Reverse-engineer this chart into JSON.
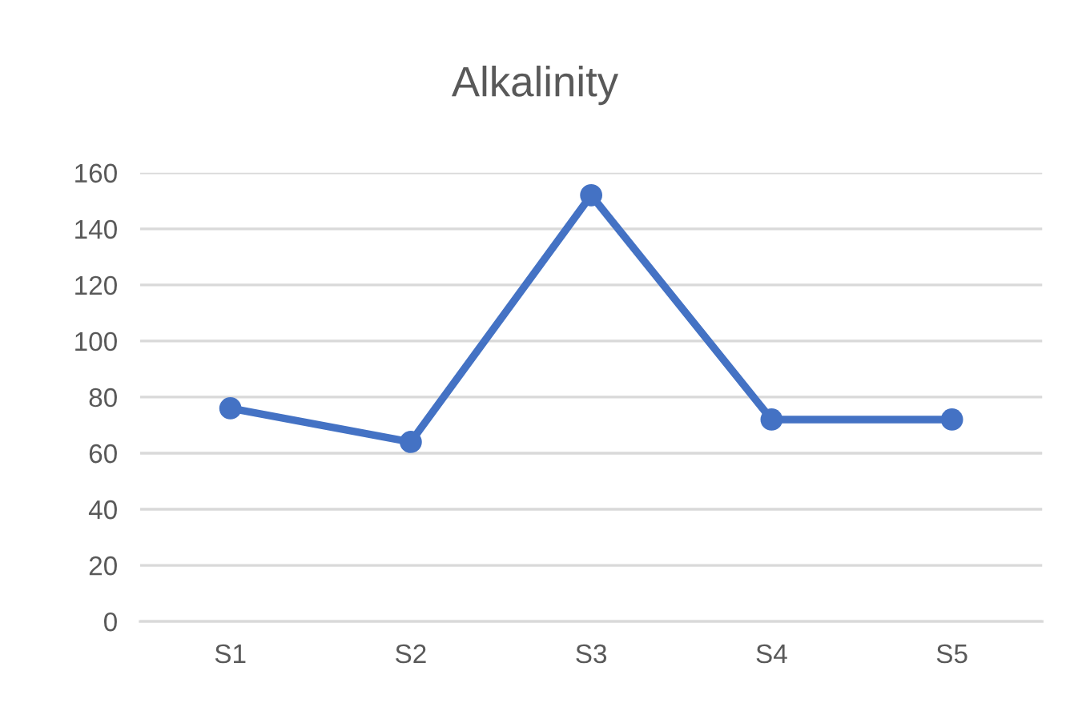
{
  "chart_data": {
    "type": "line",
    "title": "Alkalinity",
    "categories": [
      "S1",
      "S2",
      "S3",
      "S4",
      "S5"
    ],
    "series": [
      {
        "color": "#4472c4",
        "values": [
          76,
          64,
          152,
          72,
          72
        ]
      }
    ],
    "ylim": [
      0,
      160
    ],
    "yticks": [
      0,
      20,
      40,
      60,
      80,
      100,
      120,
      140,
      160
    ],
    "grid": "y",
    "marker": "circle",
    "line_style": "solid"
  }
}
